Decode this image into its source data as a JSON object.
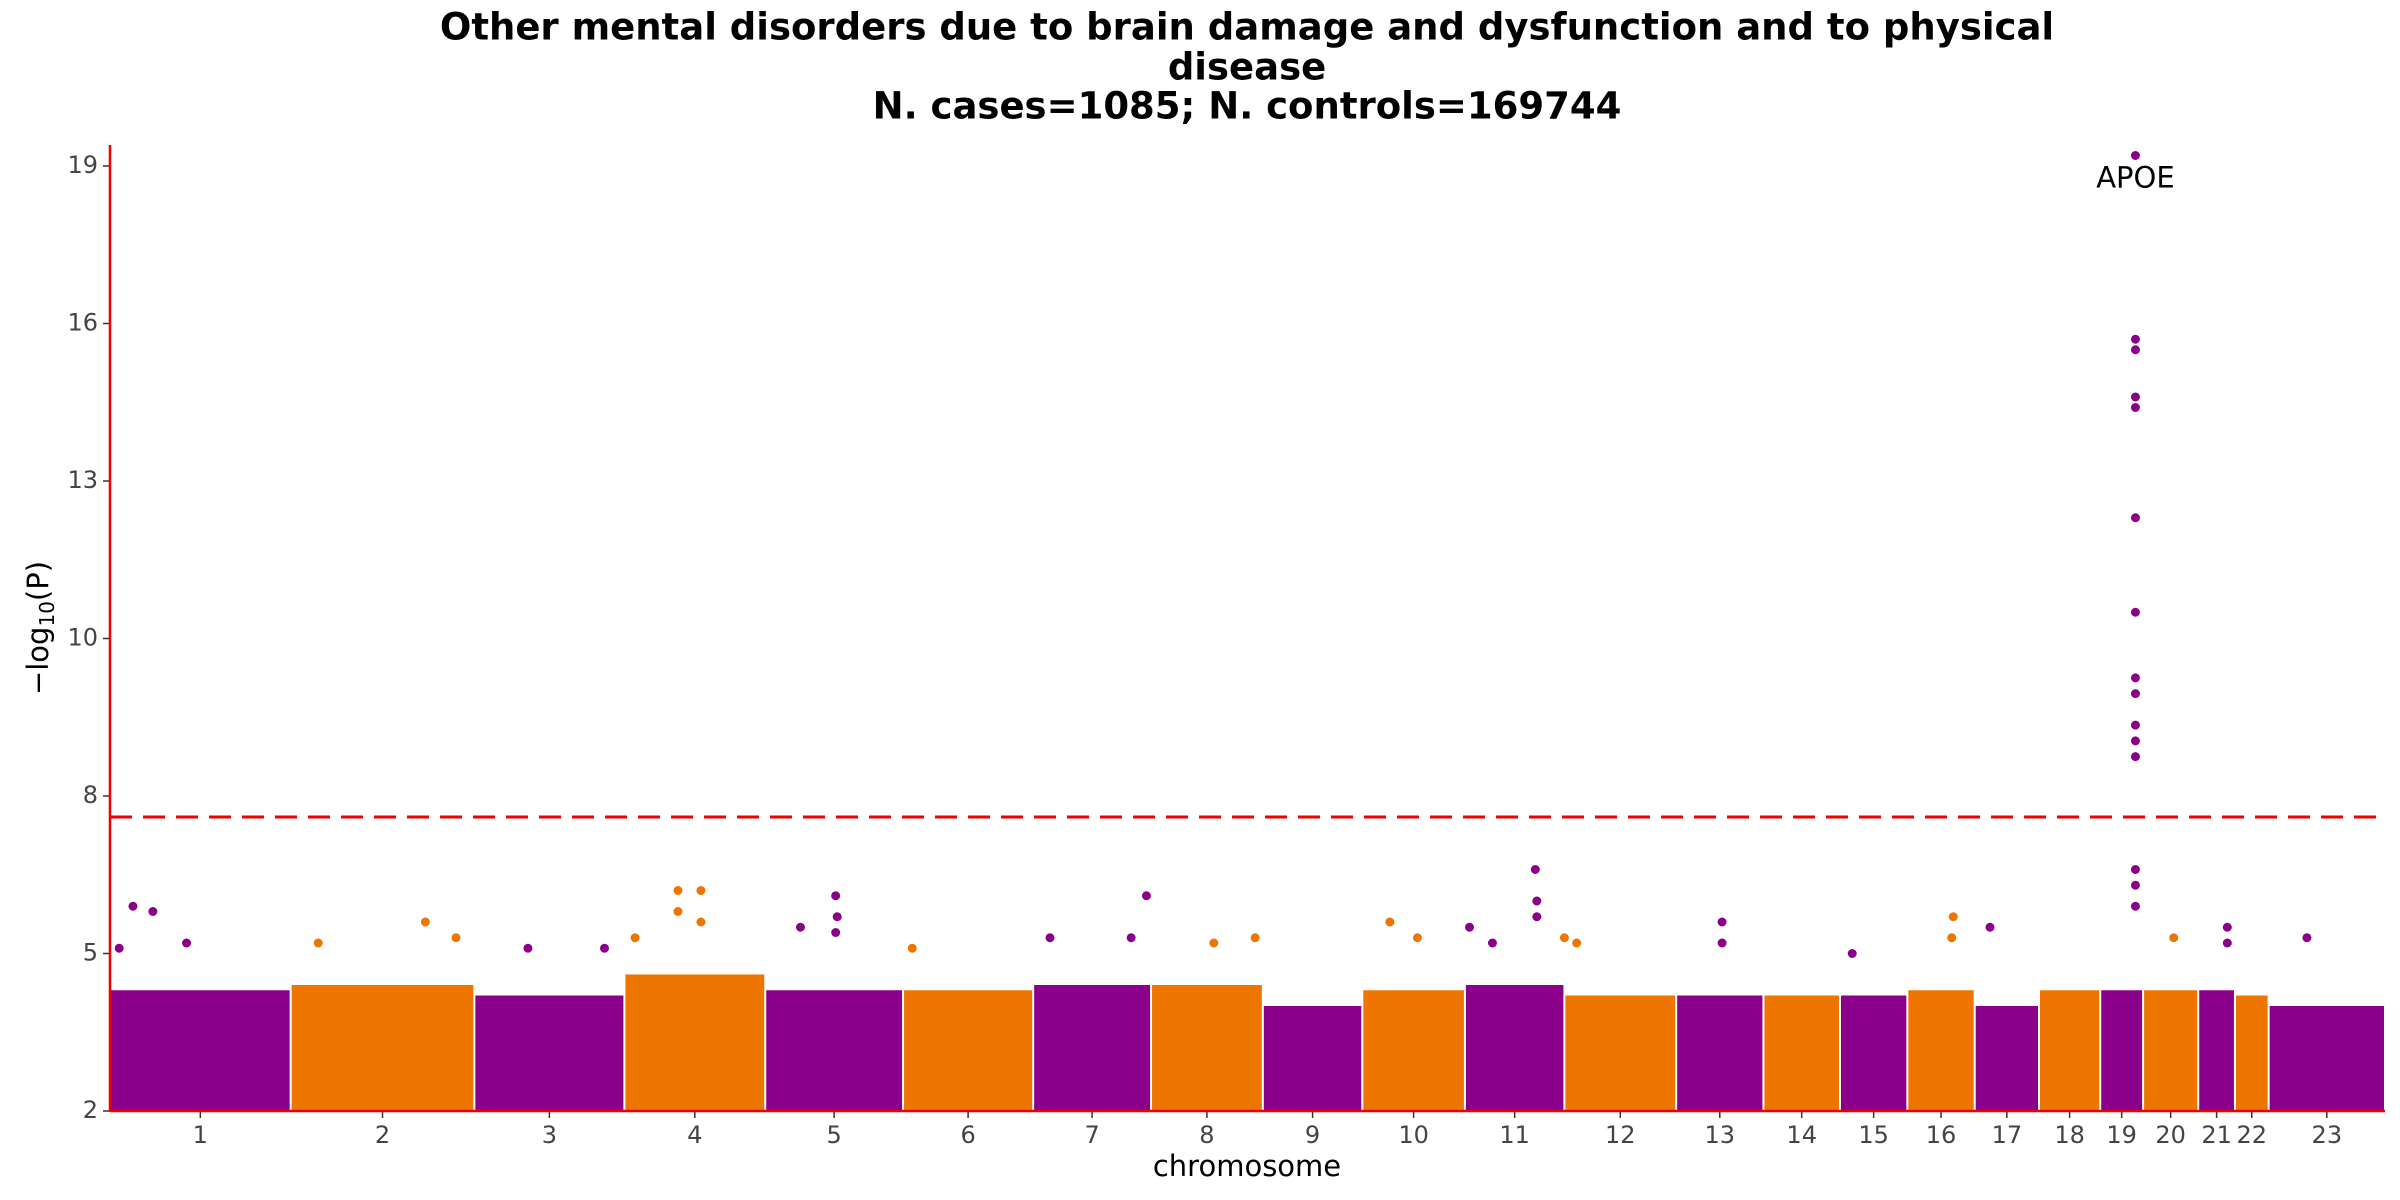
{
  "chart_data": {
    "type": "manhattan",
    "title": [
      "Other mental disorders due to brain damage and dysfunction and to physical",
      "disease",
      "N. cases=1085; N. controls=169744"
    ],
    "x_label": "chromosome",
    "y_label": [
      "−log",
      "10",
      "(P)"
    ],
    "ylim": [
      2,
      19.4
    ],
    "yticks": [
      2,
      5,
      8,
      10,
      13,
      16,
      19
    ],
    "ytick_spacing": "equal",
    "xlim": [
      0,
      2972
    ],
    "threshold": 7.6,
    "threshold_color": "#EE0000",
    "axis_color": "#EE0000",
    "colors": [
      "#8B008B",
      "#EE7600"
    ],
    "chromosomes": [
      {
        "name": "1",
        "start": 0,
        "end": 236,
        "bulk_top": 4.3
      },
      {
        "name": "2",
        "start": 236,
        "end": 476,
        "bulk_top": 4.4
      },
      {
        "name": "3",
        "start": 476,
        "end": 672,
        "bulk_top": 4.2
      },
      {
        "name": "4",
        "start": 672,
        "end": 856,
        "bulk_top": 4.6
      },
      {
        "name": "5",
        "start": 856,
        "end": 1036,
        "bulk_top": 4.3
      },
      {
        "name": "6",
        "start": 1036,
        "end": 1206,
        "bulk_top": 4.3
      },
      {
        "name": "7",
        "start": 1206,
        "end": 1360,
        "bulk_top": 4.4
      },
      {
        "name": "8",
        "start": 1360,
        "end": 1506,
        "bulk_top": 4.4
      },
      {
        "name": "9",
        "start": 1506,
        "end": 1636,
        "bulk_top": 4.0
      },
      {
        "name": "10",
        "start": 1636,
        "end": 1770,
        "bulk_top": 4.3
      },
      {
        "name": "11",
        "start": 1770,
        "end": 1900,
        "bulk_top": 4.4
      },
      {
        "name": "12",
        "start": 1900,
        "end": 2046,
        "bulk_top": 4.2
      },
      {
        "name": "13",
        "start": 2046,
        "end": 2160,
        "bulk_top": 4.2
      },
      {
        "name": "14",
        "start": 2160,
        "end": 2260,
        "bulk_top": 4.2
      },
      {
        "name": "15",
        "start": 2260,
        "end": 2348,
        "bulk_top": 4.2
      },
      {
        "name": "16",
        "start": 2348,
        "end": 2436,
        "bulk_top": 4.3
      },
      {
        "name": "17",
        "start": 2436,
        "end": 2520,
        "bulk_top": 4.0
      },
      {
        "name": "18",
        "start": 2520,
        "end": 2600,
        "bulk_top": 4.3
      },
      {
        "name": "19",
        "start": 2600,
        "end": 2656,
        "bulk_top": 4.3
      },
      {
        "name": "20",
        "start": 2656,
        "end": 2728,
        "bulk_top": 4.3
      },
      {
        "name": "21",
        "start": 2728,
        "end": 2776,
        "bulk_top": 4.3
      },
      {
        "name": "22",
        "start": 2776,
        "end": 2820,
        "bulk_top": 4.2
      },
      {
        "name": "23",
        "start": 2820,
        "end": 2972,
        "bulk_top": 4.0
      }
    ],
    "points": {
      "x": [
        30,
        56,
        100,
        12,
        272,
        412,
        452,
        546,
        646,
        742,
        772,
        742,
        772,
        686,
        902,
        948,
        950,
        948,
        1048,
        1228,
        1334,
        1354,
        1442,
        1496,
        1672,
        1708,
        1776,
        1806,
        1862,
        1864,
        1864,
        1900,
        1916,
        2106,
        2106,
        2276,
        2408,
        2406,
        2456,
        2646,
        2646,
        2646,
        2646,
        2646,
        2646,
        2646,
        2646,
        2646,
        2646,
        2646,
        2646,
        2646,
        2646,
        2646,
        2696,
        2766,
        2766,
        2870
      ],
      "values": [
        5.9,
        5.8,
        5.2,
        5.1,
        5.2,
        5.6,
        5.3,
        5.1,
        5.1,
        6.2,
        6.2,
        5.8,
        5.6,
        5.3,
        5.5,
        6.1,
        5.7,
        5.4,
        5.1,
        5.3,
        5.3,
        6.1,
        5.2,
        5.3,
        5.6,
        5.3,
        5.5,
        5.2,
        6.6,
        6.0,
        5.7,
        5.3,
        5.2,
        5.6,
        5.2,
        5.0,
        5.7,
        5.3,
        5.5,
        19.2,
        15.7,
        15.5,
        14.6,
        14.4,
        12.3,
        10.5,
        9.5,
        9.3,
        8.9,
        8.7,
        8.5,
        6.6,
        6.3,
        5.9,
        5.3,
        5.5,
        5.2,
        5.3
      ]
    },
    "annotation": "APOE"
  }
}
